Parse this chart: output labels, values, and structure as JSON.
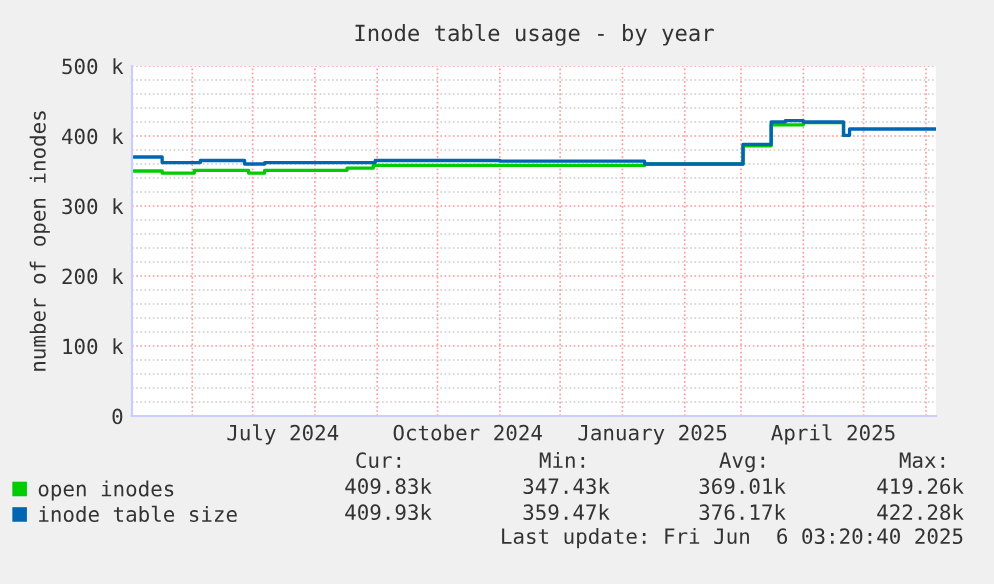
{
  "chart_data": {
    "type": "step",
    "title": "Inode table usage - by year",
    "ylabel": "number of open inodes",
    "series": [
      {
        "name": "open inodes",
        "color": "#00cc00",
        "x": [
          "2024-05-02",
          "2024-05-17",
          "2024-06-02",
          "2024-06-29",
          "2024-07-07",
          "2024-08-17",
          "2024-08-30",
          "2025-01-12",
          "2025-03-02",
          "2025-03-16",
          "2025-04-01",
          "2025-04-21"
        ],
        "values": [
          350,
          347,
          351,
          347,
          351,
          354,
          358,
          360,
          386,
          416,
          419,
          401
        ]
      },
      {
        "name": "inode table size",
        "color": "#0066b3",
        "x": [
          "2024-05-02",
          "2024-05-17",
          "2024-06-05",
          "2024-06-27",
          "2024-07-07",
          "2024-08-31",
          "2024-11-01",
          "2025-01-12",
          "2025-03-02",
          "2025-03-16",
          "2025-03-23",
          "2025-04-01",
          "2025-04-21",
          "2025-04-24",
          "2025-06-06"
        ],
        "values": [
          370,
          362,
          365,
          360,
          362,
          365,
          364,
          360,
          388,
          420,
          422,
          420,
          401,
          410,
          410
        ]
      }
    ],
    "xlim": [
      "2024-05-02",
      "2025-06-06"
    ],
    "xticks": [
      {
        "value": "2024-06-01",
        "label": null
      },
      {
        "value": "2024-07-01",
        "label": null
      },
      {
        "value": "2024-08-01",
        "label": null
      },
      {
        "value": "2024-09-01",
        "label": null
      },
      {
        "value": "2024-10-01",
        "label": null
      },
      {
        "value": "2024-11-01",
        "label": null
      },
      {
        "value": "2024-12-01",
        "label": null
      },
      {
        "value": "2025-01-01",
        "label": null
      },
      {
        "value": "2025-02-01",
        "label": null
      },
      {
        "value": "2025-03-01",
        "label": null
      },
      {
        "value": "2025-04-01",
        "label": null
      },
      {
        "value": "2025-05-01",
        "label": null
      },
      {
        "value": "2025-06-01",
        "label": null
      },
      {
        "value": "2024-07-16",
        "label": "July 2024"
      },
      {
        "value": "2024-10-16",
        "label": "October 2024"
      },
      {
        "value": "2025-01-16",
        "label": "January 2025"
      },
      {
        "value": "2025-04-16",
        "label": "April 2025"
      }
    ],
    "ylim": [
      0,
      500
    ],
    "yticks": [
      {
        "value": 0,
        "label": "0"
      },
      {
        "value": 100,
        "label": "100 k"
      },
      {
        "value": 200,
        "label": "200 k"
      },
      {
        "value": 300,
        "label": "300 k"
      },
      {
        "value": 400,
        "label": "400 k"
      },
      {
        "value": 500,
        "label": "500 k"
      },
      {
        "value": 20,
        "label": null
      },
      {
        "value": 40,
        "label": null
      },
      {
        "value": 60,
        "label": null
      },
      {
        "value": 80,
        "label": null
      },
      {
        "value": 120,
        "label": null
      },
      {
        "value": 140,
        "label": null
      },
      {
        "value": 160,
        "label": null
      },
      {
        "value": 180,
        "label": null
      },
      {
        "value": 220,
        "label": null
      },
      {
        "value": 240,
        "label": null
      },
      {
        "value": 260,
        "label": null
      },
      {
        "value": 280,
        "label": null
      },
      {
        "value": 320,
        "label": null
      },
      {
        "value": 340,
        "label": null
      },
      {
        "value": 360,
        "label": null
      },
      {
        "value": 380,
        "label": null
      },
      {
        "value": 420,
        "label": null
      },
      {
        "value": 440,
        "label": null
      },
      {
        "value": 460,
        "label": null
      },
      {
        "value": 480,
        "label": null
      }
    ],
    "grid": true,
    "legend": "bottom left",
    "annotations": [
      "Cur:",
      "Min:",
      "Avg:",
      "Max:",
      "409.83k",
      "347.43k",
      "369.01k",
      "419.26k",
      "409.93k",
      "359.47k",
      "376.17k",
      "422.28k",
      "Last update: Fri Jun  6 03:20:40 2025"
    ]
  }
}
